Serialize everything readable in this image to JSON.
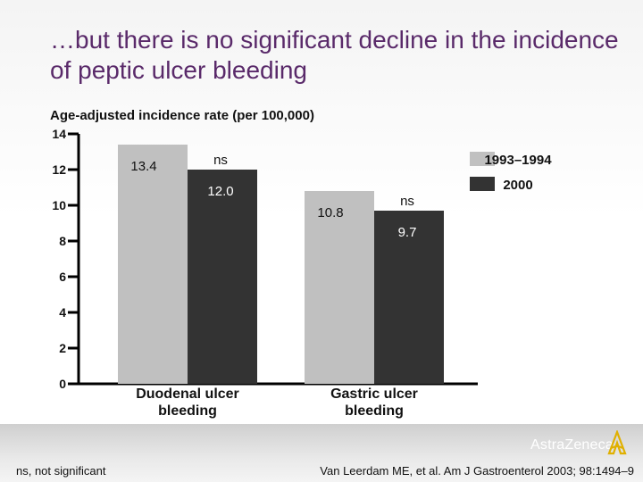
{
  "slide": {
    "title": "…but there is no significant decline in the incidence of peptic ulcer bleeding",
    "footnote": "ns, not significant",
    "citation": "Van Leerdam ME, et al. Am J Gastroenterol 2003; 98:1494–9",
    "logo_text": "AstraZeneca"
  },
  "chart_data": {
    "type": "bar",
    "ylabel": "Age-adjusted incidence rate (per 100,000)",
    "ylim": [
      0,
      14
    ],
    "yticks": [
      0,
      2,
      4,
      6,
      8,
      10,
      12,
      14
    ],
    "categories": [
      "Duodenal ulcer bleeding",
      "Gastric ulcer bleeding"
    ],
    "category_lines": [
      [
        "Duodenal ulcer",
        "bleeding"
      ],
      [
        "Gastric ulcer",
        "bleeding"
      ]
    ],
    "series": [
      {
        "name": "1993–1994",
        "values": [
          13.4,
          10.8
        ],
        "labels": [
          "13.4",
          "10.8"
        ],
        "color": "#c0c0c0"
      },
      {
        "name": "2000",
        "values": [
          12.0,
          9.7
        ],
        "labels": [
          "12.0",
          "9.7"
        ],
        "color": "#333333"
      }
    ],
    "significance": [
      "ns",
      "ns"
    ],
    "legend_position": "top-right",
    "grid": false
  }
}
